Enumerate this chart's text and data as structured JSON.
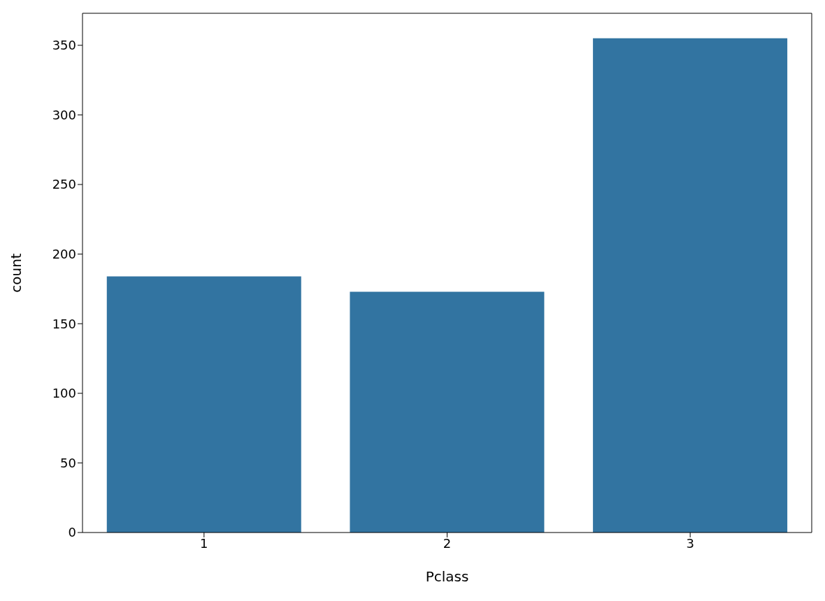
{
  "chart_data": {
    "type": "bar",
    "xlabel": "Pclass",
    "ylabel": "count",
    "categories": [
      "1",
      "2",
      "3"
    ],
    "values": [
      184,
      173,
      355
    ],
    "color": "#3274a1",
    "ylim": [
      0,
      373
    ],
    "yticks": [
      0,
      50,
      100,
      150,
      200,
      250,
      300,
      350
    ],
    "grid": false
  }
}
